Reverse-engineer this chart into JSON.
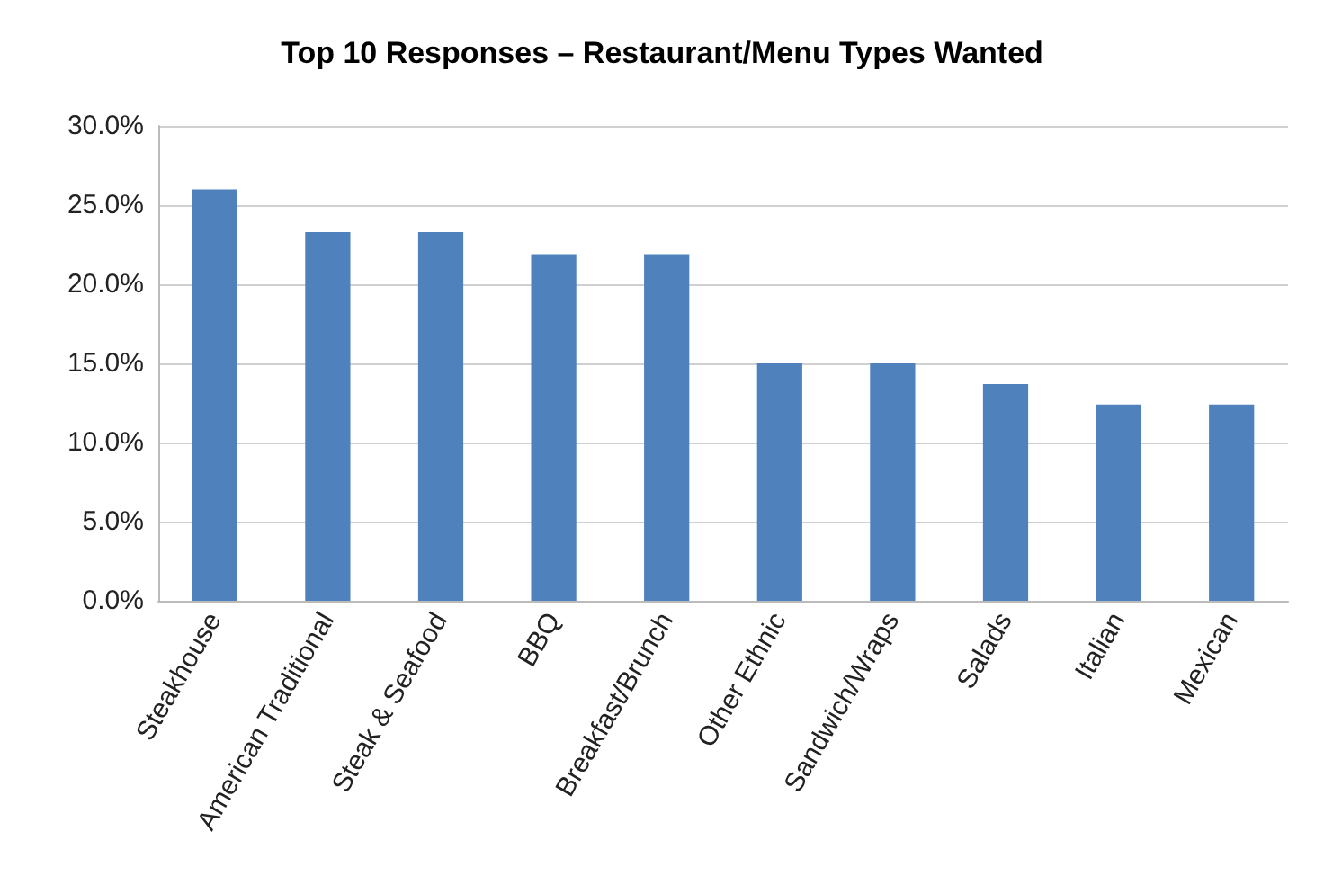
{
  "chart_data": {
    "type": "bar",
    "title": "Top 10 Responses – Restaurant/Menu Types Wanted",
    "categories": [
      "Steakhouse",
      "American Traditional",
      "Steak & Seafood",
      "BBQ",
      "Breakfast/Brunch",
      "Other Ethnic",
      "Sandwich/Wraps",
      "Salads",
      "Italian",
      "Mexican"
    ],
    "values": [
      26.0,
      23.3,
      23.3,
      21.9,
      21.9,
      15.0,
      15.0,
      13.7,
      12.4,
      12.4
    ],
    "color": "#4f81bd",
    "ylim": [
      0,
      30
    ],
    "yticks": [
      {
        "value": 0,
        "label": "0.0%"
      },
      {
        "value": 5,
        "label": "5.0%"
      },
      {
        "value": 10,
        "label": "10.0%"
      },
      {
        "value": 15,
        "label": "15.0%"
      },
      {
        "value": 20,
        "label": "20.0%"
      },
      {
        "value": 25,
        "label": "25.0%"
      },
      {
        "value": 30,
        "label": "30.0%"
      }
    ],
    "grid": "y"
  }
}
